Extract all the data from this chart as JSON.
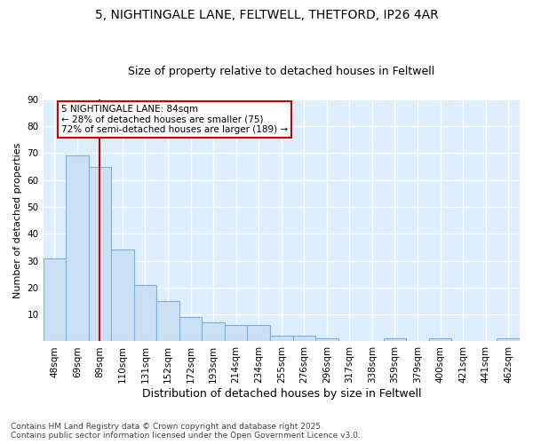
{
  "title1": "5, NIGHTINGALE LANE, FELTWELL, THETFORD, IP26 4AR",
  "title2": "Size of property relative to detached houses in Feltwell",
  "xlabel": "Distribution of detached houses by size in Feltwell",
  "ylabel": "Number of detached properties",
  "categories": [
    "48sqm",
    "69sqm",
    "89sqm",
    "110sqm",
    "131sqm",
    "152sqm",
    "172sqm",
    "193sqm",
    "214sqm",
    "234sqm",
    "255sqm",
    "276sqm",
    "296sqm",
    "317sqm",
    "338sqm",
    "359sqm",
    "379sqm",
    "400sqm",
    "421sqm",
    "441sqm",
    "462sqm"
  ],
  "values": [
    31,
    69,
    65,
    34,
    21,
    15,
    9,
    7,
    6,
    6,
    2,
    2,
    1,
    0,
    0,
    1,
    0,
    1,
    0,
    0,
    1
  ],
  "bar_color": "#cce0f5",
  "bar_edge_color": "#7ab0e0",
  "fig_background": "#ffffff",
  "ax_background": "#ddeeff",
  "grid_color": "#ffffff",
  "vline_x": 2,
  "vline_color": "#cc0000",
  "annotation_text": "5 NIGHTINGALE LANE: 84sqm\n← 28% of detached houses are smaller (75)\n72% of semi-detached houses are larger (189) →",
  "annotation_box_facecolor": "#ffffff",
  "annotation_box_edgecolor": "#cc0000",
  "footnote": "Contains HM Land Registry data © Crown copyright and database right 2025.\nContains public sector information licensed under the Open Government Licence v3.0.",
  "ylim": [
    0,
    90
  ],
  "yticks": [
    0,
    10,
    20,
    30,
    40,
    50,
    60,
    70,
    80,
    90
  ],
  "title1_fontsize": 10,
  "title2_fontsize": 9,
  "xlabel_fontsize": 9,
  "ylabel_fontsize": 8,
  "tick_fontsize": 7.5,
  "footnote_fontsize": 6.5
}
